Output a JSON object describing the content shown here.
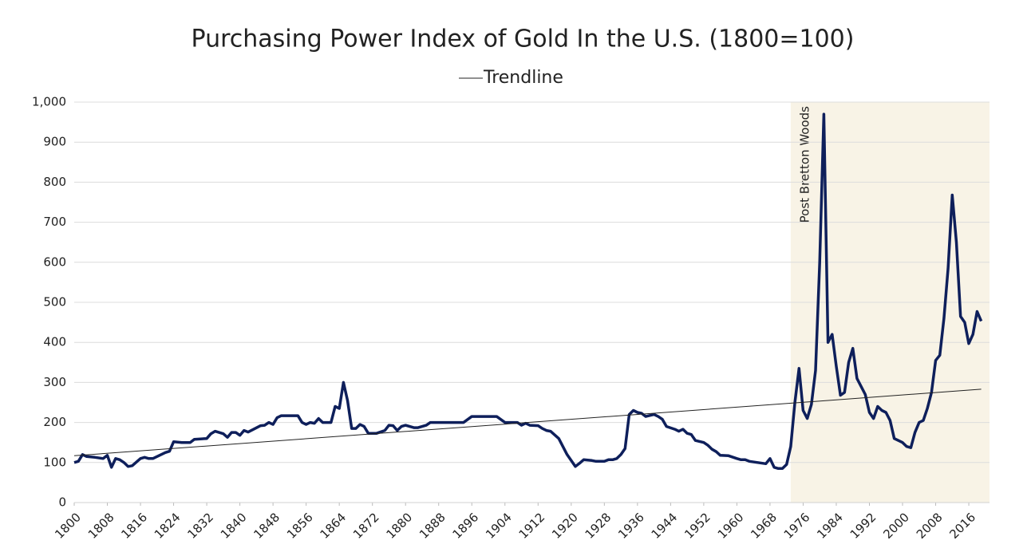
{
  "chart_data": {
    "type": "line",
    "title": "Purchasing Power Index of Gold In the U.S. (1800=100)",
    "xlim": [
      1800,
      2021
    ],
    "xticks": [
      {
        "value": 1800,
        "label": "1800"
      },
      {
        "value": 1808,
        "label": "1808"
      },
      {
        "value": 1816,
        "label": "1816"
      },
      {
        "value": 1824,
        "label": "1824"
      },
      {
        "value": 1832,
        "label": "1832"
      },
      {
        "value": 1840,
        "label": "1840"
      },
      {
        "value": 1848,
        "label": "1848"
      },
      {
        "value": 1856,
        "label": "1856"
      },
      {
        "value": 1864,
        "label": "1864"
      },
      {
        "value": 1872,
        "label": "1872"
      },
      {
        "value": 1880,
        "label": "1880"
      },
      {
        "value": 1888,
        "label": "1888"
      },
      {
        "value": 1896,
        "label": "1896"
      },
      {
        "value": 1904,
        "label": "1904"
      },
      {
        "value": 1912,
        "label": "1912"
      },
      {
        "value": 1920,
        "label": "1920"
      },
      {
        "value": 1928,
        "label": "1928"
      },
      {
        "value": 1936,
        "label": "1936"
      },
      {
        "value": 1944,
        "label": "1944"
      },
      {
        "value": 1952,
        "label": "1952"
      },
      {
        "value": 1960,
        "label": "1960"
      },
      {
        "value": 1968,
        "label": "1968"
      },
      {
        "value": 1976,
        "label": "1976"
      },
      {
        "value": 1984,
        "label": "1984"
      },
      {
        "value": 1992,
        "label": "1992"
      },
      {
        "value": 2000,
        "label": "2000"
      },
      {
        "value": 2008,
        "label": "2008"
      },
      {
        "value": 2016,
        "label": "2016"
      }
    ],
    "ylim": [
      0,
      1000
    ],
    "yticks": [
      0,
      100,
      200,
      300,
      400,
      500,
      600,
      700,
      800,
      900,
      {
        "value": 1000,
        "label": "1,000"
      }
    ],
    "grid": true,
    "annotation": {
      "text": "Post Bretton Woods",
      "x_start": 1973,
      "color": "#f8f3e6"
    },
    "series": [
      {
        "color": "#0e1f5b",
        "x": [
          1800,
          1801,
          1802,
          1803,
          1805,
          1807,
          1808,
          1809,
          1810,
          1811,
          1812,
          1813,
          1814,
          1816,
          1817,
          1818,
          1819,
          1822,
          1823,
          1824,
          1826,
          1828,
          1829,
          1832,
          1833,
          1834,
          1836,
          1837,
          1838,
          1839,
          1840,
          1841,
          1842,
          1845,
          1846,
          1847,
          1848,
          1849,
          1850,
          1854,
          1855,
          1856,
          1857,
          1858,
          1859,
          1860,
          1862,
          1863,
          1864,
          1865,
          1866,
          1867,
          1868,
          1869,
          1870,
          1871,
          1873,
          1875,
          1876,
          1877,
          1878,
          1879,
          1880,
          1882,
          1883,
          1885,
          1886,
          1894,
          1896,
          1902,
          1904,
          1907,
          1908,
          1909,
          1910,
          1912,
          1913,
          1914,
          1915,
          1917,
          1919,
          1921,
          1922,
          1923,
          1925,
          1926,
          1928,
          1929,
          1930,
          1931,
          1932,
          1933,
          1934,
          1935,
          1936,
          1937,
          1938,
          1940,
          1941,
          1942,
          1943,
          1945,
          1946,
          1947,
          1948,
          1949,
          1950,
          1952,
          1953,
          1954,
          1955,
          1956,
          1958,
          1960,
          1961,
          1962,
          1963,
          1965,
          1967,
          1968,
          1969,
          1970,
          1971,
          1972,
          1973,
          1974,
          1975,
          1976,
          1977,
          1978,
          1979,
          1980,
          1981,
          1982,
          1983,
          1984,
          1985,
          1986,
          1987,
          1988,
          1989,
          1990,
          1991,
          1992,
          1993,
          1994,
          1995,
          1996,
          1997,
          1998,
          1999,
          2000,
          2001,
          2002,
          2003,
          2004,
          2005,
          2006,
          2007,
          2008,
          2009,
          2010,
          2011,
          2012,
          2013,
          2014,
          2015,
          2016,
          2017,
          2018,
          2019
        ],
        "values": [
          100,
          103,
          120,
          115,
          113,
          110,
          118,
          88,
          110,
          107,
          100,
          90,
          92,
          110,
          113,
          110,
          110,
          125,
          128,
          152,
          150,
          150,
          158,
          160,
          172,
          178,
          172,
          163,
          175,
          175,
          168,
          180,
          176,
          192,
          193,
          200,
          195,
          212,
          217,
          217,
          200,
          195,
          200,
          198,
          210,
          200,
          200,
          240,
          235,
          300,
          255,
          185,
          185,
          195,
          190,
          173,
          173,
          180,
          193,
          192,
          180,
          190,
          193,
          187,
          187,
          193,
          200,
          200,
          215,
          215,
          200,
          200,
          193,
          198,
          193,
          192,
          185,
          180,
          178,
          160,
          120,
          90,
          98,
          107,
          105,
          103,
          103,
          107,
          107,
          110,
          120,
          135,
          220,
          230,
          225,
          223,
          215,
          220,
          215,
          208,
          190,
          183,
          178,
          183,
          173,
          170,
          155,
          150,
          143,
          133,
          127,
          118,
          117,
          110,
          107,
          107,
          103,
          100,
          97,
          110,
          88,
          85,
          85,
          95,
          140,
          250,
          335,
          230,
          210,
          245,
          330,
          600,
          970,
          400,
          420,
          340,
          268,
          275,
          350,
          385,
          310,
          290,
          270,
          225,
          210,
          240,
          230,
          225,
          205,
          160,
          155,
          150,
          140,
          137,
          175,
          200,
          205,
          235,
          275,
          355,
          368,
          460,
          585,
          768,
          650,
          465,
          450,
          397,
          420,
          477,
          453
        ]
      },
      {
        "name": "Trendline",
        "color": "#222222",
        "x": [
          1800,
          2019
        ],
        "values": [
          117,
          283
        ]
      }
    ]
  }
}
